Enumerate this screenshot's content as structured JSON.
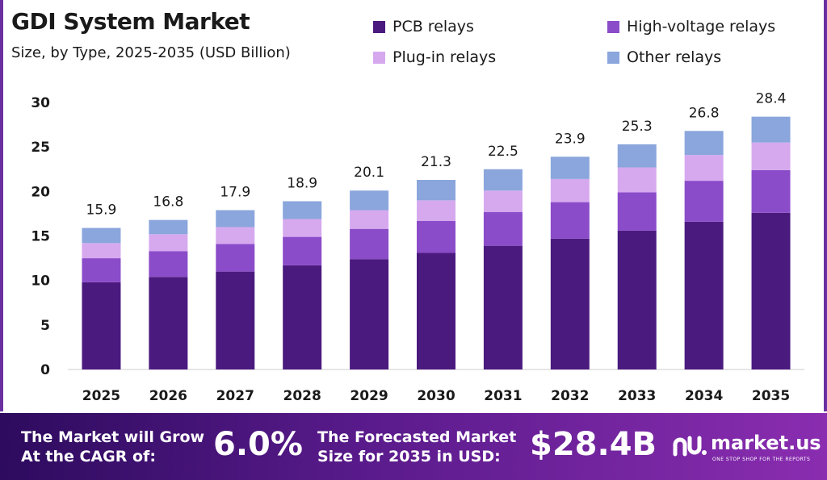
{
  "header": {
    "title": "GDI System Market",
    "subtitle": "Size, by Type, 2025-2035 (USD Billion)"
  },
  "legend": [
    {
      "label": "PCB relays",
      "color": "#4b1a7f"
    },
    {
      "label": "High-voltage relays",
      "color": "#8b4cc9"
    },
    {
      "label": "Plug-in relays",
      "color": "#d6a9ef"
    },
    {
      "label": "Other relays",
      "color": "#8aa6dc"
    }
  ],
  "chart_data": {
    "type": "bar",
    "stacked": true,
    "categories": [
      "2025",
      "2026",
      "2027",
      "2028",
      "2029",
      "2030",
      "2031",
      "2032",
      "2033",
      "2034",
      "2035"
    ],
    "series": [
      {
        "name": "PCB relays",
        "values": [
          9.8,
          10.4,
          11.0,
          11.7,
          12.4,
          13.1,
          13.9,
          14.7,
          15.6,
          16.6,
          17.6
        ]
      },
      {
        "name": "High-voltage relays",
        "values": [
          2.7,
          2.9,
          3.1,
          3.2,
          3.4,
          3.6,
          3.8,
          4.1,
          4.3,
          4.6,
          4.8
        ]
      },
      {
        "name": "Plug-in relays",
        "values": [
          1.7,
          1.9,
          1.9,
          2.0,
          2.1,
          2.3,
          2.4,
          2.6,
          2.8,
          2.9,
          3.1
        ]
      },
      {
        "name": "Other relays",
        "values": [
          1.7,
          1.6,
          1.9,
          2.0,
          2.2,
          2.3,
          2.4,
          2.5,
          2.6,
          2.7,
          2.9
        ]
      }
    ],
    "totals": [
      "15.9",
      "16.8",
      "17.9",
      "18.9",
      "20.1",
      "21.3",
      "22.5",
      "23.9",
      "25.3",
      "26.8",
      "28.4"
    ],
    "yticks": [
      "0",
      "5",
      "10",
      "15",
      "20",
      "25",
      "30"
    ],
    "ylim": [
      0,
      30
    ],
    "grid": false,
    "legend_position": "top-right"
  },
  "footer": {
    "cagr_label": [
      "The Market will Grow",
      "At the CAGR of:"
    ],
    "cagr_value": "6.0%",
    "forecast_label": [
      "The Forecasted Market",
      "Size for 2035 in USD:"
    ],
    "forecast_value": "$28.4B",
    "brand_name": "market.us",
    "brand_tagline": "ONE STOP SHOP FOR THE REPORTS"
  }
}
